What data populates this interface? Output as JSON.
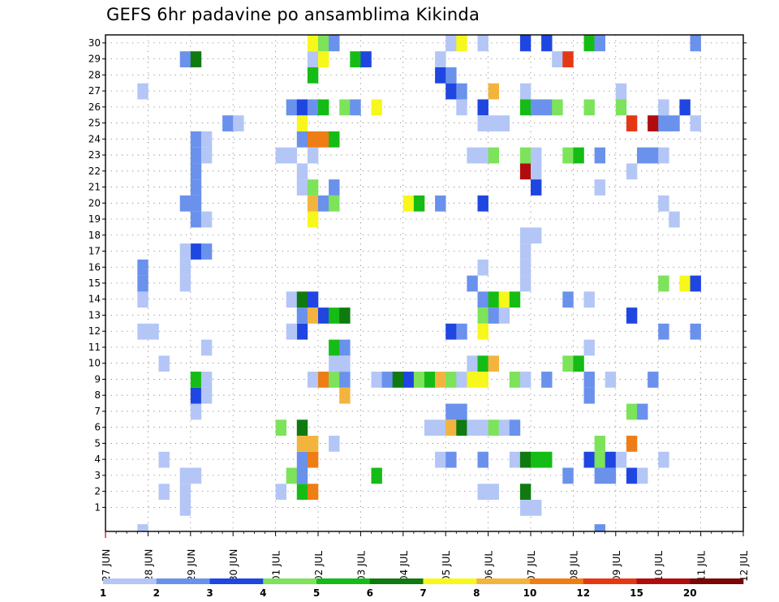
{
  "chart_data": {
    "type": "heatmap",
    "title": "GEFS 6hr padavine po ansamblima Kikinda",
    "xlabel": "",
    "ylabel": "",
    "x_range": [
      "27 JUN 00",
      "12 JUL 06"
    ],
    "time_step_hours": 6,
    "y_range": [
      0,
      30
    ],
    "y_ticks": [
      1,
      2,
      3,
      4,
      5,
      6,
      7,
      8,
      9,
      10,
      11,
      12,
      13,
      14,
      15,
      16,
      17,
      18,
      19,
      20,
      21,
      22,
      23,
      24,
      25,
      26,
      27,
      28,
      29,
      30
    ],
    "x_ticks": [
      "27 JUN",
      "28 JUN",
      "29 JUN",
      "30 JUN",
      "01 JUL",
      "02 JUL",
      "03 JUL",
      "04 JUL",
      "05 JUL",
      "06 JUL",
      "07 JUL",
      "08 JUL",
      "09 JUL",
      "10 JUL",
      "11 JUL",
      "12 JUL"
    ],
    "grid": true,
    "legend": {
      "position": "bottom",
      "labels": [
        "1",
        "2",
        "3",
        "4",
        "5",
        "6",
        "7",
        "8",
        "10",
        "12",
        "15",
        "20"
      ],
      "colors": [
        "#b3c6f6",
        "#6a91ec",
        "#1f46e0",
        "#7ce35a",
        "#15bc15",
        "#0f7a10",
        "#f7f71c",
        "#f3b43e",
        "#ee7d16",
        "#e43815",
        "#b10c0c",
        "#7a0606"
      ]
    },
    "value_unit": "class index 1-12 (color scale)",
    "cells": [
      {
        "x": "28 JUN 18",
        "y": 1,
        "v": 1
      },
      {
        "x": "27 JUN 18",
        "y": 0,
        "v": 1
      },
      {
        "x": "28 JUN 06",
        "y": 2,
        "v": 1
      },
      {
        "x": "28 JUN 18",
        "y": 2,
        "v": 1
      },
      {
        "x": "28 JUN 18",
        "y": 3,
        "v": 1
      },
      {
        "x": "29 JUN 00",
        "y": 3,
        "v": 1
      },
      {
        "x": "28 JUN 06",
        "y": 4,
        "v": 1
      },
      {
        "x": "29 JUN 00",
        "y": 7,
        "v": 1
      },
      {
        "x": "29 JUN 00",
        "y": 8,
        "v": 3
      },
      {
        "x": "29 JUN 06",
        "y": 8,
        "v": 1
      },
      {
        "x": "29 JUN 00",
        "y": 9,
        "v": 5
      },
      {
        "x": "29 JUN 06",
        "y": 9,
        "v": 1
      },
      {
        "x": "28 JUN 06",
        "y": 10,
        "v": 1
      },
      {
        "x": "29 JUN 06",
        "y": 11,
        "v": 1
      },
      {
        "x": "27 JUN 18",
        "y": 12,
        "v": 1
      },
      {
        "x": "28 JUN 00",
        "y": 12,
        "v": 1
      },
      {
        "x": "27 JUN 18",
        "y": 14,
        "v": 1
      },
      {
        "x": "27 JUN 18",
        "y": 15,
        "v": 2
      },
      {
        "x": "28 JUN 18",
        "y": 15,
        "v": 1
      },
      {
        "x": "27 JUN 18",
        "y": 16,
        "v": 2
      },
      {
        "x": "28 JUN 18",
        "y": 16,
        "v": 1
      },
      {
        "x": "29 JUN 00",
        "y": 17,
        "v": 3
      },
      {
        "x": "29 JUN 06",
        "y": 17,
        "v": 2
      },
      {
        "x": "28 JUN 18",
        "y": 17,
        "v": 1
      },
      {
        "x": "29 JUN 00",
        "y": 19,
        "v": 2
      },
      {
        "x": "29 JUN 06",
        "y": 19,
        "v": 1
      },
      {
        "x": "28 JUN 18",
        "y": 20,
        "v": 2
      },
      {
        "x": "29 JUN 00",
        "y": 20,
        "v": 2
      },
      {
        "x": "29 JUN 00",
        "y": 21,
        "v": 2
      },
      {
        "x": "29 JUN 00",
        "y": 22,
        "v": 2
      },
      {
        "x": "29 JUN 00",
        "y": 23,
        "v": 2
      },
      {
        "x": "29 JUN 06",
        "y": 23,
        "v": 1
      },
      {
        "x": "29 JUN 00",
        "y": 24,
        "v": 2
      },
      {
        "x": "29 JUN 06",
        "y": 24,
        "v": 1
      },
      {
        "x": "29 JUN 18",
        "y": 25,
        "v": 2
      },
      {
        "x": "30 JUN 00",
        "y": 25,
        "v": 1
      },
      {
        "x": "27 JUN 18",
        "y": 27,
        "v": 1
      },
      {
        "x": "28 JUN 18",
        "y": 29,
        "v": 2
      },
      {
        "x": "29 JUN 00",
        "y": 29,
        "v": 6
      },
      {
        "x": "01 JUL 00",
        "y": 2,
        "v": 1
      },
      {
        "x": "01 JUL 06",
        "y": 3,
        "v": 4
      },
      {
        "x": "01 JUL 00",
        "y": 6,
        "v": 4
      },
      {
        "x": "01 JUL 12",
        "y": 2,
        "v": 5
      },
      {
        "x": "01 JUL 18",
        "y": 2,
        "v": 9
      },
      {
        "x": "01 JUL 12",
        "y": 3,
        "v": 2
      },
      {
        "x": "01 JUL 12",
        "y": 4,
        "v": 2
      },
      {
        "x": "01 JUL 18",
        "y": 4,
        "v": 9
      },
      {
        "x": "01 JUL 12",
        "y": 5,
        "v": 8
      },
      {
        "x": "01 JUL 18",
        "y": 5,
        "v": 8
      },
      {
        "x": "01 JUL 12",
        "y": 6,
        "v": 6
      },
      {
        "x": "01 JUL 12",
        "y": 12,
        "v": 3
      },
      {
        "x": "01 JUL 06",
        "y": 12,
        "v": 1
      },
      {
        "x": "01 JUL 12",
        "y": 13,
        "v": 2
      },
      {
        "x": "01 JUL 18",
        "y": 13,
        "v": 8
      },
      {
        "x": "02 JUL 00",
        "y": 13,
        "v": 3
      },
      {
        "x": "02 JUL 06",
        "y": 13,
        "v": 5
      },
      {
        "x": "02 JUL 12",
        "y": 13,
        "v": 6
      },
      {
        "x": "01 JUL 06",
        "y": 14,
        "v": 1
      },
      {
        "x": "01 JUL 12",
        "y": 14,
        "v": 6
      },
      {
        "x": "01 JUL 18",
        "y": 14,
        "v": 3
      },
      {
        "x": "01 JUL 18",
        "y": 9,
        "v": 1
      },
      {
        "x": "02 JUL 00",
        "y": 9,
        "v": 9
      },
      {
        "x": "02 JUL 06",
        "y": 9,
        "v": 4
      },
      {
        "x": "02 JUL 12",
        "y": 9,
        "v": 2
      },
      {
        "x": "02 JUL 12",
        "y": 8,
        "v": 8
      },
      {
        "x": "02 JUL 06",
        "y": 10,
        "v": 1
      },
      {
        "x": "02 JUL 12",
        "y": 10,
        "v": 1
      },
      {
        "x": "02 JUL 06",
        "y": 11,
        "v": 5
      },
      {
        "x": "02 JUL 12",
        "y": 11,
        "v": 2
      },
      {
        "x": "02 JUL 06",
        "y": 5,
        "v": 1
      },
      {
        "x": "01 JUL 18",
        "y": 19,
        "v": 7
      },
      {
        "x": "01 JUL 18",
        "y": 20,
        "v": 8
      },
      {
        "x": "02 JUL 00",
        "y": 20,
        "v": 2
      },
      {
        "x": "02 JUL 06",
        "y": 20,
        "v": 4
      },
      {
        "x": "01 JUL 12",
        "y": 21,
        "v": 1
      },
      {
        "x": "01 JUL 18",
        "y": 21,
        "v": 4
      },
      {
        "x": "02 JUL 06",
        "y": 21,
        "v": 2
      },
      {
        "x": "01 JUL 12",
        "y": 22,
        "v": 1
      },
      {
        "x": "01 JUL 00",
        "y": 23,
        "v": 1
      },
      {
        "x": "01 JUL 06",
        "y": 23,
        "v": 1
      },
      {
        "x": "01 JUL 18",
        "y": 23,
        "v": 1
      },
      {
        "x": "01 JUL 12",
        "y": 24,
        "v": 2
      },
      {
        "x": "01 JUL 18",
        "y": 24,
        "v": 9
      },
      {
        "x": "02 JUL 00",
        "y": 24,
        "v": 9
      },
      {
        "x": "02 JUL 06",
        "y": 24,
        "v": 5
      },
      {
        "x": "01 JUL 12",
        "y": 25,
        "v": 7
      },
      {
        "x": "01 JUL 06",
        "y": 26,
        "v": 2
      },
      {
        "x": "01 JUL 12",
        "y": 26,
        "v": 3
      },
      {
        "x": "01 JUL 18",
        "y": 26,
        "v": 2
      },
      {
        "x": "02 JUL 00",
        "y": 26,
        "v": 5
      },
      {
        "x": "02 JUL 12",
        "y": 26,
        "v": 4
      },
      {
        "x": "02 JUL 18",
        "y": 26,
        "v": 2
      },
      {
        "x": "03 JUL 06",
        "y": 26,
        "v": 7
      },
      {
        "x": "01 JUL 18",
        "y": 28,
        "v": 5
      },
      {
        "x": "01 JUL 18",
        "y": 29,
        "v": 1
      },
      {
        "x": "02 JUL 00",
        "y": 29,
        "v": 7
      },
      {
        "x": "02 JUL 18",
        "y": 29,
        "v": 5
      },
      {
        "x": "03 JUL 00",
        "y": 29,
        "v": 3
      },
      {
        "x": "01 JUL 18",
        "y": 30,
        "v": 7
      },
      {
        "x": "02 JUL 00",
        "y": 30,
        "v": 4
      },
      {
        "x": "02 JUL 06",
        "y": 30,
        "v": 2
      },
      {
        "x": "03 JUL 06",
        "y": 3,
        "v": 5
      },
      {
        "x": "03 JUL 06",
        "y": 9,
        "v": 1
      },
      {
        "x": "03 JUL 12",
        "y": 9,
        "v": 2
      },
      {
        "x": "03 JUL 18",
        "y": 9,
        "v": 6
      },
      {
        "x": "04 JUL 00",
        "y": 9,
        "v": 3
      },
      {
        "x": "04 JUL 06",
        "y": 9,
        "v": 4
      },
      {
        "x": "04 JUL 12",
        "y": 9,
        "v": 5
      },
      {
        "x": "04 JUL 18",
        "y": 9,
        "v": 8
      },
      {
        "x": "05 JUL 00",
        "y": 9,
        "v": 4
      },
      {
        "x": "05 JUL 06",
        "y": 9,
        "v": 1
      },
      {
        "x": "05 JUL 12",
        "y": 9,
        "v": 7
      },
      {
        "x": "05 JUL 18",
        "y": 9,
        "v": 7
      },
      {
        "x": "04 JUL 00",
        "y": 20,
        "v": 7
      },
      {
        "x": "04 JUL 06",
        "y": 20,
        "v": 5
      },
      {
        "x": "04 JUL 18",
        "y": 20,
        "v": 2
      },
      {
        "x": "04 JUL 12",
        "y": 6,
        "v": 1
      },
      {
        "x": "04 JUL 18",
        "y": 6,
        "v": 1
      },
      {
        "x": "05 JUL 00",
        "y": 6,
        "v": 8
      },
      {
        "x": "05 JUL 06",
        "y": 6,
        "v": 6
      },
      {
        "x": "05 JUL 00",
        "y": 7,
        "v": 2
      },
      {
        "x": "05 JUL 06",
        "y": 7,
        "v": 2
      },
      {
        "x": "04 JUL 18",
        "y": 4,
        "v": 1
      },
      {
        "x": "05 JUL 00",
        "y": 4,
        "v": 2
      },
      {
        "x": "05 JUL 00",
        "y": 12,
        "v": 3
      },
      {
        "x": "05 JUL 06",
        "y": 12,
        "v": 2
      },
      {
        "x": "04 JUL 18",
        "y": 29,
        "v": 1
      },
      {
        "x": "04 JUL 18",
        "y": 28,
        "v": 3
      },
      {
        "x": "05 JUL 00",
        "y": 28,
        "v": 2
      },
      {
        "x": "05 JUL 00",
        "y": 27,
        "v": 3
      },
      {
        "x": "05 JUL 06",
        "y": 27,
        "v": 2
      },
      {
        "x": "05 JUL 06",
        "y": 26,
        "v": 1
      },
      {
        "x": "05 JUL 00",
        "y": 30,
        "v": 1
      },
      {
        "x": "05 JUL 06",
        "y": 30,
        "v": 7
      },
      {
        "x": "05 JUL 18",
        "y": 26,
        "v": 3
      },
      {
        "x": "06 JUL 00",
        "y": 27,
        "v": 8
      },
      {
        "x": "05 JUL 12",
        "y": 23,
        "v": 1
      },
      {
        "x": "05 JUL 18",
        "y": 23,
        "v": 1
      },
      {
        "x": "06 JUL 00",
        "y": 23,
        "v": 4
      },
      {
        "x": "05 JUL 18",
        "y": 25,
        "v": 1
      },
      {
        "x": "06 JUL 00",
        "y": 25,
        "v": 1
      },
      {
        "x": "06 JUL 06",
        "y": 25,
        "v": 1
      },
      {
        "x": "05 JUL 18",
        "y": 20,
        "v": 3
      },
      {
        "x": "05 JUL 18",
        "y": 16,
        "v": 1
      },
      {
        "x": "05 JUL 12",
        "y": 15,
        "v": 2
      },
      {
        "x": "05 JUL 18",
        "y": 14,
        "v": 2
      },
      {
        "x": "06 JUL 00",
        "y": 14,
        "v": 5
      },
      {
        "x": "06 JUL 06",
        "y": 14,
        "v": 7
      },
      {
        "x": "06 JUL 12",
        "y": 14,
        "v": 5
      },
      {
        "x": "05 JUL 18",
        "y": 13,
        "v": 4
      },
      {
        "x": "06 JUL 00",
        "y": 13,
        "v": 2
      },
      {
        "x": "06 JUL 06",
        "y": 13,
        "v": 1
      },
      {
        "x": "05 JUL 18",
        "y": 12,
        "v": 7
      },
      {
        "x": "05 JUL 12",
        "y": 10,
        "v": 1
      },
      {
        "x": "05 JUL 18",
        "y": 10,
        "v": 5
      },
      {
        "x": "06 JUL 00",
        "y": 10,
        "v": 8
      },
      {
        "x": "05 JUL 12",
        "y": 6,
        "v": 1
      },
      {
        "x": "05 JUL 18",
        "y": 6,
        "v": 1
      },
      {
        "x": "06 JUL 00",
        "y": 6,
        "v": 4
      },
      {
        "x": "06 JUL 06",
        "y": 6,
        "v": 1
      },
      {
        "x": "06 JUL 12",
        "y": 6,
        "v": 2
      },
      {
        "x": "05 JUL 18",
        "y": 4,
        "v": 2
      },
      {
        "x": "05 JUL 18",
        "y": 2,
        "v": 1
      },
      {
        "x": "06 JUL 00",
        "y": 2,
        "v": 1
      },
      {
        "x": "06 JUL 12",
        "y": 9,
        "v": 4
      },
      {
        "x": "06 JUL 18",
        "y": 9,
        "v": 1
      },
      {
        "x": "05 JUL 18",
        "y": 30,
        "v": 1
      },
      {
        "x": "06 JUL 12",
        "y": 4,
        "v": 1
      },
      {
        "x": "06 JUL 18",
        "y": 4,
        "v": 6
      },
      {
        "x": "07 JUL 00",
        "y": 4,
        "v": 5
      },
      {
        "x": "07 JUL 06",
        "y": 4,
        "v": 5
      },
      {
        "x": "06 JUL 18",
        "y": 2,
        "v": 6
      },
      {
        "x": "06 JUL 18",
        "y": 1,
        "v": 1
      },
      {
        "x": "07 JUL 00",
        "y": 1,
        "v": 1
      },
      {
        "x": "06 JUL 18",
        "y": 15,
        "v": 1
      },
      {
        "x": "06 JUL 18",
        "y": 16,
        "v": 1
      },
      {
        "x": "06 JUL 18",
        "y": 17,
        "v": 1
      },
      {
        "x": "06 JUL 18",
        "y": 18,
        "v": 1
      },
      {
        "x": "07 JUL 00",
        "y": 18,
        "v": 1
      },
      {
        "x": "06 JUL 18",
        "y": 22,
        "v": 11
      },
      {
        "x": "07 JUL 00",
        "y": 22,
        "v": 1
      },
      {
        "x": "07 JUL 00",
        "y": 21,
        "v": 3
      },
      {
        "x": "06 JUL 18",
        "y": 23,
        "v": 4
      },
      {
        "x": "07 JUL 00",
        "y": 23,
        "v": 1
      },
      {
        "x": "06 JUL 18",
        "y": 26,
        "v": 5
      },
      {
        "x": "07 JUL 00",
        "y": 26,
        "v": 2
      },
      {
        "x": "07 JUL 06",
        "y": 26,
        "v": 2
      },
      {
        "x": "07 JUL 12",
        "y": 26,
        "v": 4
      },
      {
        "x": "06 JUL 18",
        "y": 27,
        "v": 1
      },
      {
        "x": "06 JUL 18",
        "y": 30,
        "v": 3
      },
      {
        "x": "07 JUL 06",
        "y": 30,
        "v": 3
      },
      {
        "x": "07 JUL 06",
        "y": 9,
        "v": 2
      },
      {
        "x": "07 JUL 18",
        "y": 14,
        "v": 2
      },
      {
        "x": "08 JUL 06",
        "y": 14,
        "v": 1
      },
      {
        "x": "07 JUL 18",
        "y": 10,
        "v": 4
      },
      {
        "x": "08 JUL 00",
        "y": 10,
        "v": 5
      },
      {
        "x": "07 JUL 18",
        "y": 3,
        "v": 2
      },
      {
        "x": "07 JUL 18",
        "y": 23,
        "v": 4
      },
      {
        "x": "08 JUL 00",
        "y": 23,
        "v": 5
      },
      {
        "x": "07 JUL 12",
        "y": 29,
        "v": 1
      },
      {
        "x": "07 JUL 18",
        "y": 29,
        "v": 10
      },
      {
        "x": "08 JUL 06",
        "y": 30,
        "v": 5
      },
      {
        "x": "08 JUL 12",
        "y": 30,
        "v": 2
      },
      {
        "x": "08 JUL 06",
        "y": 26,
        "v": 4
      },
      {
        "x": "08 JUL 12",
        "y": 23,
        "v": 2
      },
      {
        "x": "08 JUL 12",
        "y": 21,
        "v": 1
      },
      {
        "x": "08 JUL 06",
        "y": 11,
        "v": 1
      },
      {
        "x": "08 JUL 06",
        "y": 9,
        "v": 2
      },
      {
        "x": "08 JUL 18",
        "y": 9,
        "v": 1
      },
      {
        "x": "08 JUL 06",
        "y": 8,
        "v": 2
      },
      {
        "x": "08 JUL 06",
        "y": 4,
        "v": 3
      },
      {
        "x": "08 JUL 12",
        "y": 4,
        "v": 4
      },
      {
        "x": "08 JUL 18",
        "y": 4,
        "v": 3
      },
      {
        "x": "08 JUL 12",
        "y": 5,
        "v": 4
      },
      {
        "x": "08 JUL 12",
        "y": 3,
        "v": 2
      },
      {
        "x": "08 JUL 18",
        "y": 3,
        "v": 2
      },
      {
        "x": "08 JUL 12",
        "y": 0,
        "v": 2
      },
      {
        "x": "09 JUL 00",
        "y": 4,
        "v": 1
      },
      {
        "x": "09 JUL 06",
        "y": 3,
        "v": 3
      },
      {
        "x": "09 JUL 12",
        "y": 3,
        "v": 1
      },
      {
        "x": "09 JUL 06",
        "y": 5,
        "v": 9
      },
      {
        "x": "09 JUL 06",
        "y": 7,
        "v": 4
      },
      {
        "x": "09 JUL 12",
        "y": 7,
        "v": 2
      },
      {
        "x": "09 JUL 18",
        "y": 9,
        "v": 2
      },
      {
        "x": "09 JUL 06",
        "y": 13,
        "v": 3
      },
      {
        "x": "09 JUL 00",
        "y": 26,
        "v": 4
      },
      {
        "x": "09 JUL 00",
        "y": 27,
        "v": 1
      },
      {
        "x": "09 JUL 06",
        "y": 22,
        "v": 1
      },
      {
        "x": "09 JUL 06",
        "y": 25,
        "v": 10
      },
      {
        "x": "09 JUL 12",
        "y": 23,
        "v": 2
      },
      {
        "x": "09 JUL 18",
        "y": 23,
        "v": 2
      },
      {
        "x": "10 JUL 00",
        "y": 23,
        "v": 1
      },
      {
        "x": "10 JUL 00",
        "y": 26,
        "v": 1
      },
      {
        "x": "10 JUL 12",
        "y": 26,
        "v": 3
      },
      {
        "x": "09 JUL 18",
        "y": 25,
        "v": 11
      },
      {
        "x": "10 JUL 00",
        "y": 25,
        "v": 2
      },
      {
        "x": "10 JUL 06",
        "y": 25,
        "v": 2
      },
      {
        "x": "10 JUL 18",
        "y": 25,
        "v": 1
      },
      {
        "x": "10 JUL 00",
        "y": 20,
        "v": 1
      },
      {
        "x": "10 JUL 06",
        "y": 19,
        "v": 1
      },
      {
        "x": "10 JUL 00",
        "y": 15,
        "v": 4
      },
      {
        "x": "10 JUL 12",
        "y": 15,
        "v": 7
      },
      {
        "x": "10 JUL 18",
        "y": 15,
        "v": 3
      },
      {
        "x": "10 JUL 00",
        "y": 12,
        "v": 2
      },
      {
        "x": "10 JUL 18",
        "y": 12,
        "v": 2
      },
      {
        "x": "10 JUL 00",
        "y": 4,
        "v": 1
      },
      {
        "x": "10 JUL 18",
        "y": 30,
        "v": 2
      }
    ]
  }
}
